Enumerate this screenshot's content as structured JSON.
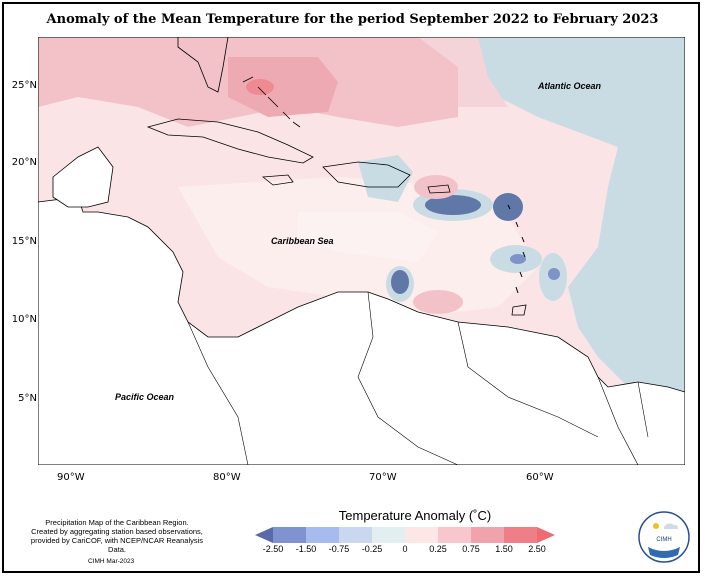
{
  "title": "Anomaly of the Mean Temperature for the period September 2022 to February 2023",
  "axes": {
    "lat_ticks": [
      "25°N",
      "20°N",
      "15°N",
      "10°N",
      "5°N"
    ],
    "lon_ticks": [
      "90°W",
      "80°W",
      "70°W",
      "60°W"
    ]
  },
  "labels": {
    "atlantic": "Atlantic Ocean",
    "caribbean": "Caribbean Sea",
    "pacific": "Pacific Ocean"
  },
  "legend": {
    "title": "Temperature Anomaly (˚C)",
    "ticks": [
      "-2.50",
      "-1.50",
      "-0.75",
      "-0.25",
      "0",
      "0.25",
      "0.75",
      "1.50",
      "2.50"
    ],
    "colors": [
      "#5a6aa8",
      "#7f93d1",
      "#a8bbf0",
      "#c9d8ef",
      "#e3eef0",
      "#fde6e6",
      "#f7c7cd",
      "#f1a3ad",
      "#ee7f86",
      "#f06a72"
    ]
  },
  "caption": {
    "line1": "Precipitation Map of the Caribbean Region.",
    "line2": "Created by aggregating station based observations,",
    "line3": "provided by CariCOF, with NCEP/NCAR Reanalysis Data.",
    "date": "CIMH Mar-2023"
  },
  "logo": {
    "text": "CIMH"
  }
}
